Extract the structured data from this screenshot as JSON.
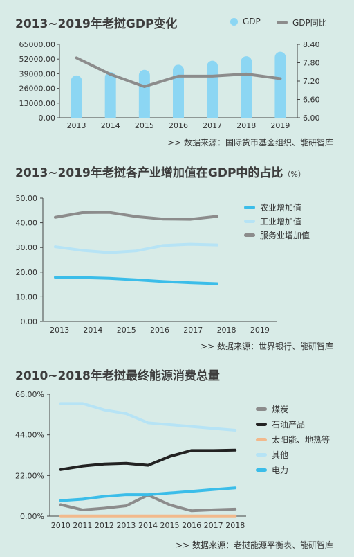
{
  "charts": [
    {
      "title": "2013~2019年老挝GDP变化",
      "title_unit": "",
      "source": ">>  数据来源：国际货币基金组织、能研智库",
      "legend": [
        {
          "label": "GDP",
          "kind": "dot",
          "color": "#8cd6f3"
        },
        {
          "label": "GDP同比",
          "kind": "line",
          "color": "#8c8c8c"
        }
      ]
    },
    {
      "title": "2013~2019年老挝各产业增加值在GDP中的占比",
      "title_unit": "（%）",
      "source": ">>  数据来源：世界银行、能研智库",
      "legend": [
        {
          "label": "农业增加值",
          "kind": "line",
          "color": "#3bbde9"
        },
        {
          "label": "工业增加值",
          "kind": "line",
          "color": "#b6e3f5"
        },
        {
          "label": "服务业增加值",
          "kind": "line",
          "color": "#8c8c8c"
        }
      ]
    },
    {
      "title": "2010~2018年老挝最终能源消费总量",
      "title_unit": "",
      "source": ">>  数据来源：老挝能源平衡表、能研智库",
      "legend": [
        {
          "label": "煤炭",
          "kind": "line",
          "color": "#8c8c8c"
        },
        {
          "label": "石油产品",
          "kind": "line",
          "color": "#222222"
        },
        {
          "label": "太阳能、地热等",
          "kind": "line",
          "color": "#f2b98c"
        },
        {
          "label": "其他",
          "kind": "line",
          "color": "#b6e3f5"
        },
        {
          "label": "电力",
          "kind": "line",
          "color": "#3bbde9"
        }
      ]
    }
  ],
  "chart_data": [
    {
      "type": "bar+line",
      "title": "2013~2019年老挝GDP变化",
      "categories": [
        "2013",
        "2014",
        "2015",
        "2016",
        "2017",
        "2018",
        "2019"
      ],
      "series": [
        {
          "name": "GDP",
          "type": "bar",
          "axis": "left",
          "color": "#8cd6f3",
          "values": [
            37500,
            40500,
            42500,
            47000,
            50500,
            54500,
            58500
          ]
        },
        {
          "name": "GDP同比",
          "type": "line",
          "axis": "right",
          "color": "#8c8c8c",
          "values": [
            7.96,
            7.42,
            7.02,
            7.36,
            7.36,
            7.43,
            7.28
          ]
        }
      ],
      "yticks_left": [
        "65000.00",
        "52000.00",
        "39000.00",
        "26000.00",
        "13000.00",
        "0.00"
      ],
      "yticks_right": [
        "8.40",
        "7.80",
        "7.20",
        "6.60",
        "6.00"
      ],
      "ylim_left": [
        0,
        65000
      ],
      "ylim_right": [
        6.0,
        8.4
      ]
    },
    {
      "type": "line",
      "title": "2013~2019年老挝各产业增加值在GDP中的占比",
      "categories": [
        "2013",
        "2014",
        "2015",
        "2016",
        "2017",
        "2018",
        "2019"
      ],
      "series": [
        {
          "name": "农业增加值",
          "color": "#3bbde9",
          "values": [
            17.9,
            17.8,
            17.5,
            16.9,
            16.2,
            15.7,
            15.3
          ]
        },
        {
          "name": "工业增加值",
          "color": "#b6e3f5",
          "values": [
            30.3,
            28.8,
            27.9,
            28.6,
            30.8,
            31.3,
            31.0
          ]
        },
        {
          "name": "服务业增加值",
          "color": "#8c8c8c",
          "values": [
            42.2,
            44.1,
            44.2,
            42.5,
            41.5,
            41.4,
            42.6
          ]
        }
      ],
      "yticks": [
        "50.00",
        "40.00",
        "30.00",
        "20.00",
        "10.00",
        "0.00"
      ],
      "ylim": [
        0,
        50
      ]
    },
    {
      "type": "line",
      "title": "2010~2018年老挝最终能源消费总量",
      "categories": [
        "2010",
        "2011",
        "2012",
        "2013",
        "2014",
        "2015",
        "2016",
        "2017",
        "2018"
      ],
      "series": [
        {
          "name": "煤炭",
          "color": "#8c8c8c",
          "values": [
            6.2,
            3.4,
            4.3,
            5.6,
            11.4,
            6.1,
            2.9,
            3.4,
            3.8
          ]
        },
        {
          "name": "石油产品",
          "color": "#222222",
          "values": [
            25.2,
            27.1,
            28.2,
            28.6,
            27.5,
            32.3,
            35.5,
            35.5,
            35.7
          ]
        },
        {
          "name": "太阳能、地热等",
          "color": "#f2b98c",
          "values": [
            0.1,
            0.1,
            0.1,
            0.1,
            0.1,
            0.1,
            0.1,
            0.1,
            0.1
          ]
        },
        {
          "name": "其他",
          "color": "#b6e3f5",
          "values": [
            61.0,
            61.0,
            57.5,
            55.5,
            50.5,
            49.5,
            48.5,
            47.5,
            46.5
          ]
        },
        {
          "name": "电力",
          "color": "#3bbde9",
          "values": [
            8.4,
            9.2,
            10.7,
            11.6,
            11.6,
            12.5,
            13.4,
            14.4,
            15.3
          ]
        }
      ],
      "yticks": [
        "66.00%",
        "44.00%",
        "22.00%",
        "0.00%"
      ],
      "ylim": [
        0,
        66
      ]
    }
  ]
}
